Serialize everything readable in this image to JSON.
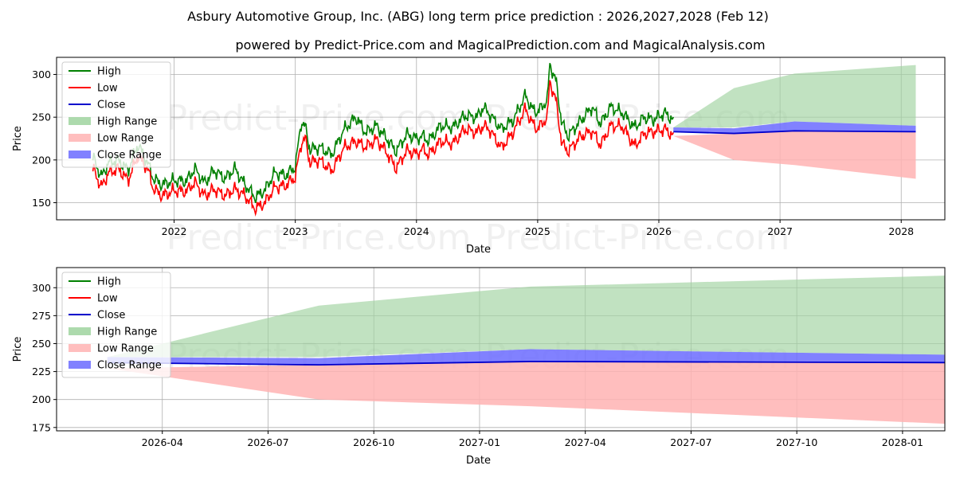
{
  "header": {
    "title": "Asbury Automotive Group, Inc. (ABG) long term price prediction : 2026,2027,2028 (Feb 12)",
    "subtitle": "powered by Predict-Price.com and MagicalPrediction.com and MagicalAnalysis.com"
  },
  "watermark": "Predict-Price.com",
  "colors": {
    "high": "#008000",
    "low": "#ff0000",
    "close": "#0000cc",
    "high_range": "#9fd39f",
    "low_range": "#ffb3b3",
    "close_range": "#6b6bff",
    "grid": "#b0b0b0"
  },
  "legend": {
    "items": [
      {
        "label": "High",
        "kind": "line",
        "color_key": "high"
      },
      {
        "label": "Low",
        "kind": "line",
        "color_key": "low"
      },
      {
        "label": "Close",
        "kind": "line",
        "color_key": "close"
      },
      {
        "label": "High Range",
        "kind": "patch",
        "color_key": "high_range"
      },
      {
        "label": "Low Range",
        "kind": "patch",
        "color_key": "low_range"
      },
      {
        "label": "Close Range",
        "kind": "patch",
        "color_key": "close_range"
      }
    ]
  },
  "chart_data": [
    {
      "type": "line",
      "title": "Asbury Automotive Group, Inc. (ABG) long term price prediction : 2026,2027,2028 (Feb 12)",
      "xlabel": "Date",
      "ylabel": "Price",
      "xlim": [
        2021.03,
        2028.36
      ],
      "ylim": [
        130,
        320
      ],
      "xticks": [
        2022,
        2023,
        2024,
        2025,
        2026,
        2027,
        2028
      ],
      "xtick_labels": [
        "2022",
        "2023",
        "2024",
        "2025",
        "2026",
        "2027",
        "2028"
      ],
      "yticks": [
        150,
        200,
        250,
        300
      ],
      "ytick_labels": [
        "150",
        "200",
        "250",
        "300"
      ],
      "grid": true,
      "legend_position": "upper-left",
      "history": {
        "x": [
          2021.33,
          2021.4,
          2021.46,
          2021.54,
          2021.62,
          2021.7,
          2021.78,
          2021.83,
          2021.9,
          2022.0,
          2022.1,
          2022.17,
          2022.25,
          2022.33,
          2022.42,
          2022.5,
          2022.58,
          2022.67,
          2022.75,
          2022.83,
          2022.92,
          2023.0,
          2023.05,
          2023.08,
          2023.12,
          2023.2,
          2023.3,
          2023.4,
          2023.5,
          2023.58,
          2023.67,
          2023.75,
          2023.83,
          2023.92,
          2024.0,
          2024.05,
          2024.1,
          2024.2,
          2024.3,
          2024.4,
          2024.5,
          2024.55,
          2024.6,
          2024.7,
          2024.8,
          2024.9,
          2024.95,
          2025.0,
          2025.08,
          2025.1,
          2025.15,
          2025.2,
          2025.25,
          2025.35,
          2025.45,
          2025.52,
          2025.6,
          2025.7,
          2025.8,
          2025.88,
          2025.95,
          2026.05,
          2026.12
        ],
        "low": [
          190,
          168,
          185,
          190,
          176,
          205,
          190,
          166,
          158,
          164,
          163,
          174,
          158,
          166,
          158,
          166,
          159,
          143,
          150,
          168,
          170,
          180,
          220,
          226,
          197,
          200,
          187,
          214,
          222,
          215,
          224,
          210,
          190,
          211,
          207,
          213,
          206,
          222,
          219,
          236,
          232,
          240,
          236,
          214,
          233,
          260,
          244,
          236,
          250,
          292,
          270,
          219,
          210,
          227,
          234,
          217,
          240,
          239,
          216,
          231,
          233,
          236,
          228
        ],
        "high": [
          203,
          180,
          197,
          200,
          188,
          218,
          197,
          178,
          171,
          176,
          175,
          190,
          173,
          188,
          178,
          190,
          172,
          156,
          165,
          185,
          182,
          192,
          245,
          240,
          212,
          215,
          206,
          235,
          250,
          232,
          240,
          226,
          210,
          230,
          225,
          228,
          222,
          240,
          238,
          252,
          250,
          262,
          254,
          236,
          247,
          276,
          260,
          256,
          270,
          312,
          293,
          243,
          228,
          245,
          262,
          242,
          262,
          255,
          238,
          250,
          247,
          255,
          246
        ]
      },
      "forecast": {
        "x": [
          2026.12,
          2026.62,
          2027.12,
          2028.12
        ],
        "close": [
          233,
          231,
          234,
          233
        ],
        "high_range": {
          "lower": [
            238,
            238,
            245,
            240
          ],
          "upper": [
            238,
            284,
            301,
            311
          ]
        },
        "low_range": {
          "lower": [
            228,
            200,
            194,
            178
          ],
          "upper": [
            228,
            231,
            234,
            233
          ]
        },
        "close_range": {
          "lower": [
            233,
            231,
            234,
            233
          ],
          "upper": [
            238,
            237,
            245,
            240
          ]
        }
      }
    },
    {
      "type": "area",
      "title": "",
      "xlabel": "Date",
      "ylabel": "Price",
      "xlim": [
        2026.0,
        2028.1
      ],
      "ylim": [
        172,
        318
      ],
      "xticks": [
        2026.25,
        2026.5,
        2026.75,
        2027.0,
        2027.25,
        2027.5,
        2027.75,
        2028.0
      ],
      "xtick_labels": [
        "2026-04",
        "2026-07",
        "2026-10",
        "2027-01",
        "2027-04",
        "2027-07",
        "2027-10",
        "2028-01"
      ],
      "yticks": [
        175,
        200,
        225,
        250,
        275,
        300
      ],
      "ytick_labels": [
        "175",
        "200",
        "225",
        "250",
        "275",
        "300"
      ],
      "grid": true,
      "legend_position": "upper-left",
      "forecast": {
        "x": [
          2026.12,
          2026.62,
          2027.12,
          2028.12
        ],
        "close": [
          233,
          231,
          234,
          233
        ],
        "high_range": {
          "lower": [
            238,
            238,
            245,
            240
          ],
          "upper": [
            238,
            284,
            301,
            311
          ]
        },
        "low_range": {
          "lower": [
            228,
            200,
            194,
            178
          ],
          "upper": [
            228,
            231,
            234,
            233
          ]
        },
        "close_range": {
          "lower": [
            233,
            231,
            234,
            233
          ],
          "upper": [
            238,
            237,
            245,
            240
          ]
        }
      }
    }
  ]
}
